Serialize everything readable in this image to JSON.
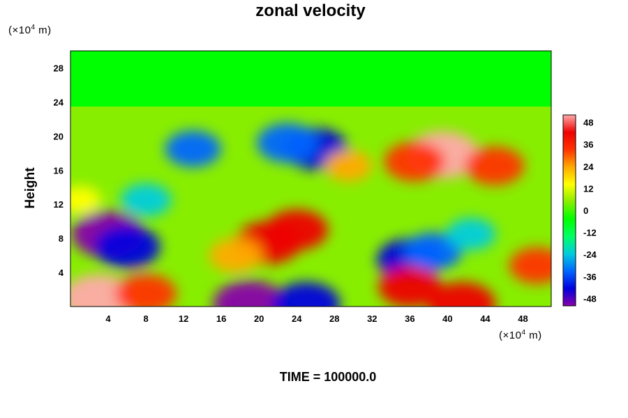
{
  "chart_data": {
    "type": "heatmap",
    "title": "zonal velocity",
    "ylabel": "Height",
    "y_unit_label": {
      "prefix": "(×10",
      "exp": "4",
      "suffix": " m)"
    },
    "x_unit_label": {
      "prefix": "(×10",
      "exp": "4",
      "suffix": " m)"
    },
    "footer": "TIME = 100000.0",
    "xlim": [
      0,
      51
    ],
    "ylim": [
      0,
      30
    ],
    "x_ticks": [
      4,
      8,
      12,
      16,
      20,
      24,
      28,
      32,
      36,
      40,
      44,
      48
    ],
    "y_ticks": [
      4,
      8,
      12,
      16,
      20,
      24,
      28
    ],
    "colorbar": {
      "range": [
        -52,
        52
      ],
      "ticks": [
        48,
        36,
        24,
        12,
        0,
        -12,
        -24,
        -36,
        -48
      ],
      "colormap": [
        "#8800aa",
        "#0000dd",
        "#0066ff",
        "#00ccdd",
        "#00ff66",
        "#00ff00",
        "#88ee00",
        "#ffff00",
        "#ffaa00",
        "#ff3300",
        "#ee0000",
        "#ffaaaa"
      ]
    },
    "background_value": 0,
    "features": [
      {
        "x": 4,
        "y": 8.5,
        "value": -50
      },
      {
        "x": 6,
        "y": 7,
        "value": -42
      },
      {
        "x": 3,
        "y": 1,
        "value": 50
      },
      {
        "x": 8,
        "y": 1.5,
        "value": 36
      },
      {
        "x": 19,
        "y": 0.3,
        "value": -50
      },
      {
        "x": 25,
        "y": 0.3,
        "value": -44
      },
      {
        "x": 21,
        "y": 7.5,
        "value": 42
      },
      {
        "x": 24,
        "y": 9,
        "value": 38
      },
      {
        "x": 17.5,
        "y": 6,
        "value": 26
      },
      {
        "x": 39.5,
        "y": 17.8,
        "value": 50
      },
      {
        "x": 36.5,
        "y": 17,
        "value": 36
      },
      {
        "x": 45,
        "y": 16.5,
        "value": 34
      },
      {
        "x": 26,
        "y": 18.5,
        "value": -40
      },
      {
        "x": 23,
        "y": 19.2,
        "value": -36
      },
      {
        "x": 13,
        "y": 18.5,
        "value": -30
      },
      {
        "x": 36,
        "y": 5.5,
        "value": -42
      },
      {
        "x": 38.5,
        "y": 6.5,
        "value": -32
      },
      {
        "x": 42.5,
        "y": 8.5,
        "value": -22
      },
      {
        "x": 36,
        "y": 2.3,
        "value": 38
      },
      {
        "x": 41.5,
        "y": 0.3,
        "value": 44
      },
      {
        "x": 49.5,
        "y": 4.8,
        "value": 30
      },
      {
        "x": 29.5,
        "y": 16.5,
        "value": 20
      },
      {
        "x": 8,
        "y": 12.5,
        "value": -24
      },
      {
        "x": 1,
        "y": 12.5,
        "value": 14
      }
    ]
  }
}
